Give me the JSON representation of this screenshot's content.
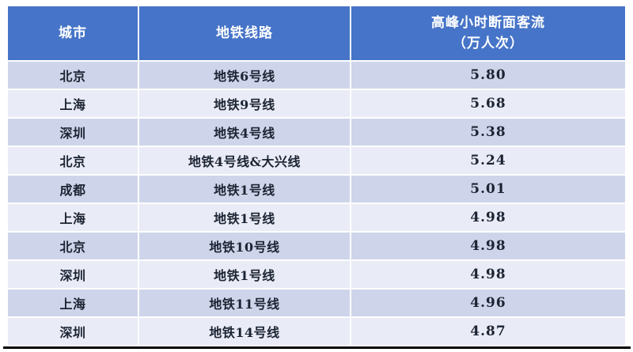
{
  "colors": {
    "header_bg": "#4674C8",
    "header_text": "#FFFFFF",
    "band_dark": "#CED5EA",
    "band_light": "#E9EBF6",
    "body_text": "#1C2433",
    "bottom_rule": "#000000"
  },
  "table": {
    "columns": [
      {
        "label": "城市"
      },
      {
        "label": "地铁线路"
      },
      {
        "label": "高峰小时断面客流",
        "label2": "（万人次）"
      }
    ],
    "rows": [
      {
        "city": "北京",
        "line": "地铁6号线",
        "flow": "5.80"
      },
      {
        "city": "上海",
        "line": "地铁9号线",
        "flow": "5.68"
      },
      {
        "city": "深圳",
        "line": "地铁4号线",
        "flow": "5.38"
      },
      {
        "city": "北京",
        "line": "地铁4号线&大兴线",
        "flow": "5.24"
      },
      {
        "city": "成都",
        "line": "地铁1号线",
        "flow": "5.01"
      },
      {
        "city": "上海",
        "line": "地铁1号线",
        "flow": "4.98"
      },
      {
        "city": "北京",
        "line": "地铁10号线",
        "flow": "4.98"
      },
      {
        "city": "深圳",
        "line": "地铁1号线",
        "flow": "4.98"
      },
      {
        "city": "上海",
        "line": "地铁11号线",
        "flow": "4.96"
      },
      {
        "city": "深圳",
        "line": "地铁14号线",
        "flow": "4.87"
      }
    ]
  }
}
